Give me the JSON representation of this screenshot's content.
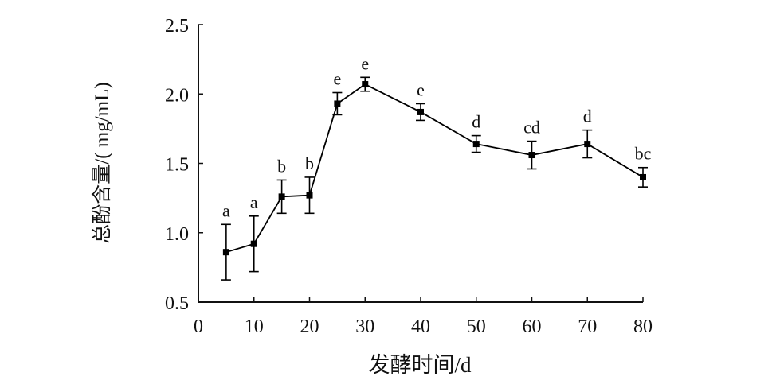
{
  "chart_data": {
    "type": "line",
    "title": "",
    "xlabel": "发酵时间/d",
    "ylabel": "总酚含量/( mg/mL)",
    "xlim": [
      0,
      80
    ],
    "ylim": [
      0.5,
      2.5
    ],
    "xticks": [
      0,
      10,
      20,
      30,
      40,
      50,
      60,
      70,
      80
    ],
    "yticks": [
      "0.5",
      "1.0",
      "1.5",
      "2.0",
      "2.5"
    ],
    "grid": false,
    "series": [
      {
        "color": "#000000",
        "x": [
          5,
          10,
          15,
          20,
          25,
          30,
          40,
          50,
          60,
          70,
          80
        ],
        "y": [
          0.86,
          0.92,
          1.26,
          1.27,
          1.93,
          2.07,
          1.87,
          1.64,
          1.56,
          1.64,
          1.4
        ],
        "error": [
          0.2,
          0.2,
          0.12,
          0.13,
          0.08,
          0.05,
          0.06,
          0.06,
          0.1,
          0.1,
          0.07
        ],
        "labels": [
          "a",
          "a",
          "b",
          "b",
          "e",
          "e",
          "e",
          "d",
          "cd",
          "d",
          "bc"
        ]
      }
    ]
  }
}
